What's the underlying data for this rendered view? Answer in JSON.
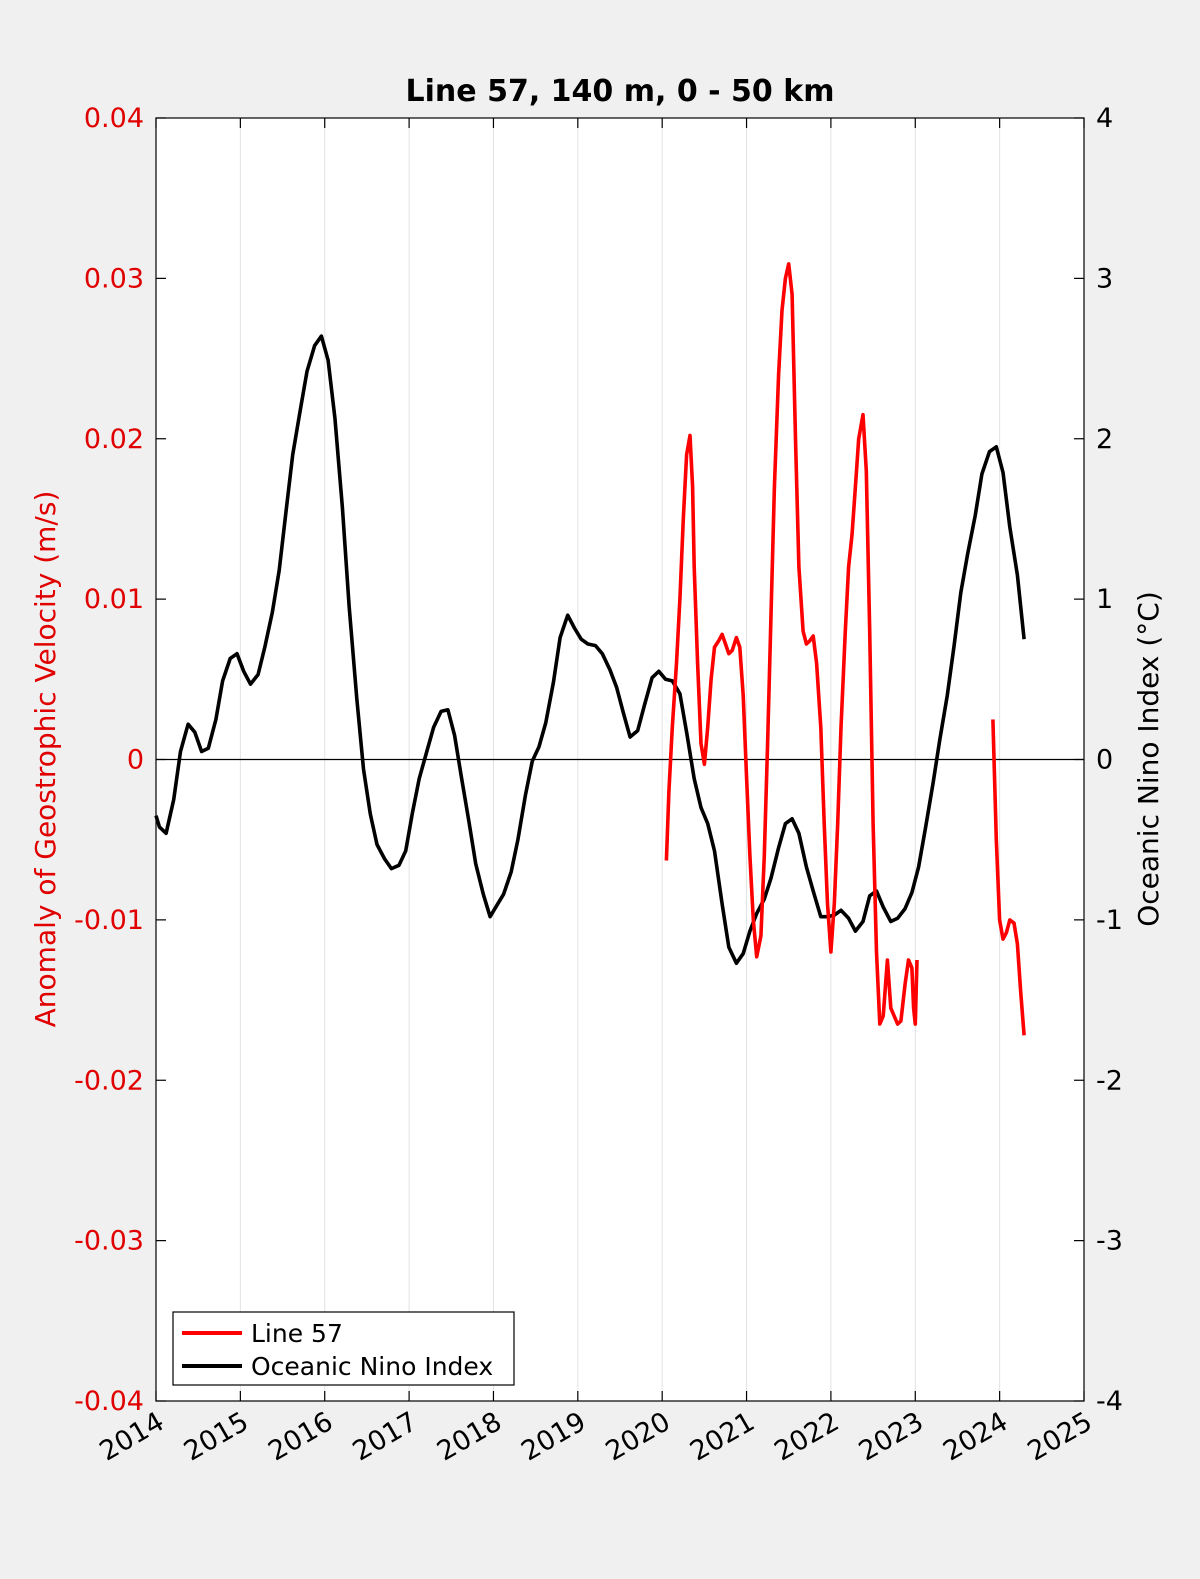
{
  "chart_data": {
    "type": "line",
    "title": "Line 57, 140 m, 0 - 50 km",
    "xlabel": "",
    "ylabel_left": "Anomaly of Geostrophic Velocity (m/s)",
    "ylabel_right": "Oceanic Nino Index (°C)",
    "xlim": [
      2014,
      2025
    ],
    "ylim_left": [
      -0.04,
      0.04
    ],
    "ylim_right": [
      -4,
      4
    ],
    "xticks": [
      "2014",
      "2015",
      "2016",
      "2017",
      "2018",
      "2019",
      "2020",
      "2021",
      "2022",
      "2023",
      "2024",
      "2025"
    ],
    "yticks_left": [
      "-0.04",
      "-0.03",
      "-0.02",
      "-0.01",
      "0",
      "0.01",
      "0.02",
      "0.03",
      "0.04"
    ],
    "yticks_right": [
      "-4",
      "-3",
      "-2",
      "-1",
      "0",
      "1",
      "2",
      "3",
      "4"
    ],
    "yticks_left_values": [
      -0.04,
      -0.03,
      -0.02,
      -0.01,
      0,
      0.01,
      0.02,
      0.03,
      0.04
    ],
    "yticks_right_values": [
      -4,
      -3,
      -2,
      -1,
      0,
      1,
      2,
      3,
      4
    ],
    "vertical_grid": true,
    "zero_line": true,
    "legend_position": "bottom-left",
    "legend": [
      "Line 57",
      "Oceanic Nino Index"
    ],
    "colors": {
      "line57": "#ff0000",
      "oni": "#000000",
      "left_axis": "#e00000",
      "right_axis": "#000000"
    },
    "series": [
      {
        "name": "Line 57",
        "axis": "left",
        "segments": [
          {
            "x": [
              2020.05,
              2020.08,
              2020.12,
              2020.17,
              2020.21,
              2020.25,
              2020.29,
              2020.33,
              2020.36,
              2020.38,
              2020.42,
              2020.46,
              2020.5,
              2020.54,
              2020.58,
              2020.62,
              2020.67,
              2020.71,
              2020.75,
              2020.79,
              2020.83,
              2020.88,
              2020.92,
              2020.96,
              2021.0,
              2021.04,
              2021.08,
              2021.12,
              2021.17,
              2021.21,
              2021.25,
              2021.29,
              2021.33,
              2021.38,
              2021.42,
              2021.46,
              2021.5,
              2021.54,
              2021.58,
              2021.62,
              2021.67,
              2021.71,
              2021.75,
              2021.79,
              2021.83,
              2021.88,
              2021.92,
              2021.96,
              2022.0,
              2022.04,
              2022.08,
              2022.12,
              2022.17,
              2022.21,
              2022.25,
              2022.29,
              2022.33,
              2022.38,
              2022.42,
              2022.46,
              2022.5,
              2022.54,
              2022.58,
              2022.62,
              2022.67,
              2022.71,
              2022.75,
              2022.79,
              2022.83,
              2022.88,
              2022.92,
              2022.96,
              2022.98,
              2023.0,
              2023.02
            ],
            "y": [
              -0.0063,
              -0.002,
              0.002,
              0.006,
              0.01,
              0.015,
              0.019,
              0.0202,
              0.017,
              0.012,
              0.006,
              0.001,
              -0.0003,
              0.002,
              0.005,
              0.007,
              0.0074,
              0.0078,
              0.0072,
              0.0066,
              0.0068,
              0.0076,
              0.007,
              0.004,
              -0.001,
              -0.006,
              -0.01,
              -0.0123,
              -0.011,
              -0.006,
              0.001,
              0.009,
              0.017,
              0.024,
              0.028,
              0.03,
              0.0309,
              0.029,
              0.02,
              0.012,
              0.008,
              0.0072,
              0.0074,
              0.0077,
              0.006,
              0.002,
              -0.004,
              -0.009,
              -0.012,
              -0.009,
              -0.004,
              0.002,
              0.008,
              0.012,
              0.014,
              0.017,
              0.02,
              0.0215,
              0.018,
              0.008,
              -0.004,
              -0.012,
              -0.0165,
              -0.016,
              -0.0125,
              -0.0155,
              -0.016,
              -0.0165,
              -0.0163,
              -0.014,
              -0.0125,
              -0.013,
              -0.0155,
              -0.0165,
              -0.0125
            ]
          },
          {
            "x": [
              2023.92,
              2023.96,
              2024.0,
              2024.04,
              2024.08,
              2024.12,
              2024.17,
              2024.21,
              2024.25,
              2024.29
            ],
            "y": [
              0.0025,
              -0.005,
              -0.01,
              -0.0112,
              -0.0108,
              -0.01,
              -0.0102,
              -0.0115,
              -0.0145,
              -0.0172
            ]
          }
        ]
      },
      {
        "name": "Oceanic Nino Index",
        "axis": "right",
        "x": [
          2014.0,
          2014.04,
          2014.12,
          2014.21,
          2014.29,
          2014.38,
          2014.46,
          2014.54,
          2014.62,
          2014.71,
          2014.79,
          2014.88,
          2014.96,
          2015.04,
          2015.12,
          2015.21,
          2015.29,
          2015.38,
          2015.46,
          2015.54,
          2015.62,
          2015.71,
          2015.79,
          2015.88,
          2015.96,
          2016.04,
          2016.12,
          2016.21,
          2016.29,
          2016.38,
          2016.46,
          2016.54,
          2016.62,
          2016.71,
          2016.79,
          2016.88,
          2016.96,
          2017.04,
          2017.12,
          2017.21,
          2017.29,
          2017.38,
          2017.46,
          2017.54,
          2017.62,
          2017.71,
          2017.79,
          2017.88,
          2017.96,
          2018.04,
          2018.12,
          2018.21,
          2018.29,
          2018.38,
          2018.46,
          2018.54,
          2018.62,
          2018.71,
          2018.79,
          2018.88,
          2018.96,
          2019.04,
          2019.12,
          2019.21,
          2019.29,
          2019.38,
          2019.46,
          2019.54,
          2019.62,
          2019.71,
          2019.79,
          2019.88,
          2019.96,
          2020.04,
          2020.12,
          2020.21,
          2020.29,
          2020.38,
          2020.46,
          2020.54,
          2020.62,
          2020.71,
          2020.79,
          2020.88,
          2020.96,
          2021.04,
          2021.12,
          2021.21,
          2021.29,
          2021.38,
          2021.46,
          2021.54,
          2021.62,
          2021.71,
          2021.79,
          2021.88,
          2021.96,
          2022.04,
          2022.12,
          2022.21,
          2022.29,
          2022.38,
          2022.46,
          2022.54,
          2022.62,
          2022.71,
          2022.79,
          2022.88,
          2022.96,
          2023.04,
          2023.12,
          2023.21,
          2023.29,
          2023.38,
          2023.46,
          2023.54,
          2023.62,
          2023.71,
          2023.79,
          2023.88,
          2023.96,
          2024.04,
          2024.12,
          2024.21,
          2024.29
        ],
        "y": [
          -0.35,
          -0.42,
          -0.46,
          -0.25,
          0.05,
          0.22,
          0.17,
          0.05,
          0.07,
          0.25,
          0.49,
          0.63,
          0.66,
          0.55,
          0.47,
          0.53,
          0.7,
          0.92,
          1.18,
          1.54,
          1.9,
          2.18,
          2.42,
          2.58,
          2.64,
          2.49,
          2.13,
          1.57,
          0.95,
          0.38,
          -0.06,
          -0.34,
          -0.53,
          -0.62,
          -0.68,
          -0.66,
          -0.57,
          -0.33,
          -0.12,
          0.05,
          0.2,
          0.3,
          0.31,
          0.15,
          -0.11,
          -0.39,
          -0.65,
          -0.84,
          -0.98,
          -0.91,
          -0.84,
          -0.7,
          -0.5,
          -0.22,
          -0.01,
          0.08,
          0.23,
          0.48,
          0.76,
          0.9,
          0.82,
          0.75,
          0.72,
          0.71,
          0.66,
          0.56,
          0.45,
          0.29,
          0.14,
          0.18,
          0.34,
          0.51,
          0.55,
          0.5,
          0.49,
          0.41,
          0.17,
          -0.12,
          -0.3,
          -0.4,
          -0.57,
          -0.9,
          -1.17,
          -1.27,
          -1.21,
          -1.07,
          -0.96,
          -0.87,
          -0.74,
          -0.55,
          -0.4,
          -0.37,
          -0.46,
          -0.67,
          -0.82,
          -0.98,
          -0.98,
          -0.97,
          -0.94,
          -0.99,
          -1.07,
          -1.01,
          -0.85,
          -0.82,
          -0.92,
          -1.01,
          -0.99,
          -0.93,
          -0.83,
          -0.67,
          -0.43,
          -0.15,
          0.12,
          0.4,
          0.71,
          1.04,
          1.28,
          1.52,
          1.78,
          1.92,
          1.95,
          1.79,
          1.45,
          1.15,
          0.75
        ]
      }
    ]
  }
}
